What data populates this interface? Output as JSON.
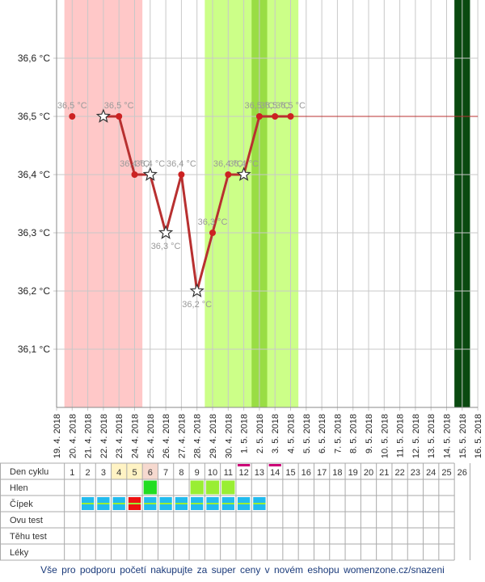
{
  "chart_data": {
    "type": "line",
    "x": [
      "19. 4. 2018",
      "20. 4. 2018",
      "21. 4. 2018",
      "22. 4. 2018",
      "23. 4. 2018",
      "24. 4. 2018",
      "25. 4. 2018",
      "26. 4. 2018",
      "27. 4. 2018",
      "28. 4. 2018",
      "29. 4. 2018",
      "30. 4. 2018",
      "1. 5. 2018",
      "2. 5. 2018",
      "3. 5. 2018",
      "4. 5. 2018",
      "5. 5. 2018",
      "6. 5. 2018",
      "7. 5. 2018",
      "8. 5. 2018",
      "9. 5. 2018",
      "10. 5. 2018",
      "11. 5. 2018",
      "12. 5. 2018",
      "13. 5. 2018",
      "14. 5. 2018",
      "15. 5. 2018",
      "16. 5. 2018"
    ],
    "series": [
      {
        "name": "Teplota",
        "color": "#b83030",
        "values": [
          null,
          36.5,
          null,
          36.5,
          36.5,
          36.4,
          36.4,
          36.3,
          36.4,
          36.2,
          36.3,
          36.4,
          36.4,
          36.5,
          36.5,
          36.5,
          null,
          null,
          null,
          null,
          null,
          null,
          null,
          null,
          null,
          null,
          null,
          null
        ],
        "value_labels": [
          null,
          "36,5 °C",
          null,
          null,
          "36,5 °C",
          "36,4 °C",
          "36,4 °C",
          "36,3 °C",
          "36,4 °C",
          "36,2 °C",
          "36,3 °C",
          "36,4 °C",
          "36,4 °C",
          "36,5 °C",
          "36,5 °C",
          "36,5 °C",
          null,
          null,
          null,
          null,
          null,
          null,
          null,
          null,
          null,
          null,
          null,
          null
        ],
        "markers": [
          null,
          "dot",
          null,
          "star",
          "dot",
          "dot",
          "star",
          "star",
          "dot",
          "star",
          "dot",
          "dot",
          "star",
          "dot",
          "dot",
          "dot",
          null,
          null,
          null,
          null,
          null,
          null,
          null,
          null,
          null,
          null,
          null,
          null
        ]
      }
    ],
    "ylim": [
      36.0,
      36.7
    ],
    "yticks": [
      {
        "value": 36.1,
        "label": "36,1 °C"
      },
      {
        "value": 36.2,
        "label": "36,2 °C"
      },
      {
        "value": 36.3,
        "label": "36,3 °C"
      },
      {
        "value": 36.4,
        "label": "36,4 °C"
      },
      {
        "value": 36.5,
        "label": "36,5 °C"
      },
      {
        "value": 36.6,
        "label": "36,6 °C"
      }
    ],
    "grid": true,
    "periods": [
      {
        "from": "20. 4. 2018",
        "to": "24. 4. 2018",
        "color": "#ffc8c8"
      },
      {
        "from": "29. 4. 2018",
        "to": "4. 5. 2018",
        "color": "#ccff88"
      },
      {
        "from": "2. 5. 2018",
        "to": "2. 5. 2018",
        "color": "#99dd44"
      },
      {
        "from": "15. 5. 2018",
        "to": "15. 5. 2018",
        "color": "#0a4a10"
      }
    ]
  },
  "cycle_table": {
    "row_labels": [
      "Den cyklu",
      "Hlen",
      "Čípek",
      "Ovu test",
      "Těhu test",
      "Léky"
    ],
    "days": [
      1,
      2,
      3,
      4,
      5,
      6,
      7,
      8,
      9,
      10,
      11,
      12,
      13,
      14,
      15,
      16,
      17,
      18,
      19,
      20,
      21,
      22,
      23,
      24,
      25,
      26
    ],
    "day_bg": [
      null,
      null,
      null,
      "#fff3c4",
      "#fff3c4",
      "#f6d9cf",
      null,
      null,
      null,
      null,
      null,
      null,
      null,
      null,
      null,
      null,
      null,
      null,
      null,
      null,
      null,
      null,
      null,
      null,
      null,
      null
    ],
    "day_mark": [
      null,
      null,
      null,
      null,
      null,
      null,
      null,
      null,
      null,
      null,
      null,
      "#cc0077",
      null,
      "#cc0077",
      null,
      null,
      null,
      null,
      null,
      null,
      null,
      null,
      null,
      null,
      null,
      null
    ],
    "hlen": [
      null,
      null,
      null,
      null,
      null,
      "#22dd22",
      null,
      null,
      "#99ee33",
      "#99ee33",
      "#99ee33",
      null,
      null,
      null,
      null,
      null,
      null,
      null,
      null,
      null,
      null,
      null,
      null,
      null,
      null,
      null
    ],
    "cipek": [
      null,
      "#22bbee",
      "#22bbee",
      "#22bbee",
      "#ee1111",
      "#22bbee",
      "#22bbee",
      "#22bbee",
      "#22bbee",
      "#22bbee",
      "#22bbee",
      "#22bbee",
      "#22bbee",
      null,
      null,
      null,
      null,
      null,
      null,
      null,
      null,
      null,
      null,
      null,
      null,
      null
    ]
  },
  "footer": {
    "text": "Vše pro podporu početí nakupujte za super ceny v novém eshopu womenzone.cz/snazeni"
  }
}
